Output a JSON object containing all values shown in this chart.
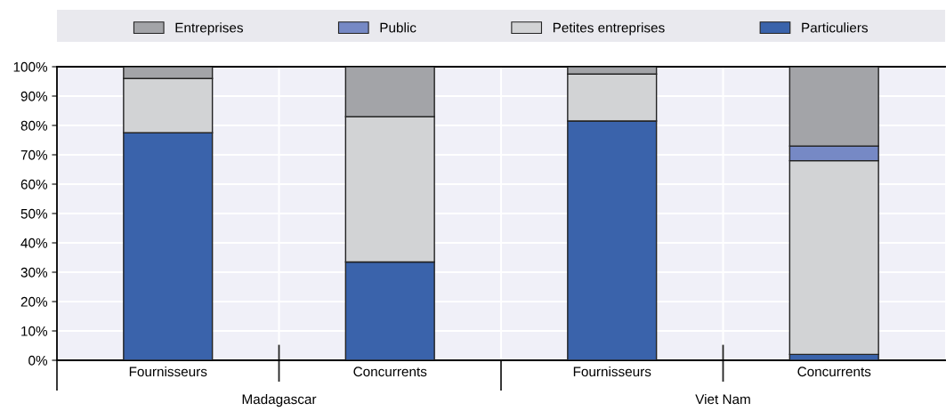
{
  "chart_data": {
    "type": "bar",
    "stacked": true,
    "categories": [
      "Fournisseurs",
      "Concurrents",
      "Fournisseurs",
      "Concurrents"
    ],
    "series": [
      {
        "name": "Particuliers",
        "color": "#3a63ab",
        "values": [
          77.5,
          33.5,
          81.5,
          2
        ]
      },
      {
        "name": "Petites entreprises",
        "color": "#d2d3d5",
        "values": [
          18.5,
          49.5,
          16,
          66
        ]
      },
      {
        "name": "Public",
        "color": "#7689c5",
        "values": [
          0,
          0,
          0,
          5
        ]
      },
      {
        "name": "Entreprises",
        "color": "#a3a4a8",
        "values": [
          4,
          17,
          2.5,
          27
        ]
      }
    ],
    "ylim": [
      0,
      100
    ],
    "yticks": [
      {
        "value": 0,
        "label": "0%"
      },
      {
        "value": 10,
        "label": "10%"
      },
      {
        "value": 20,
        "label": "20%"
      },
      {
        "value": 30,
        "label": "30%"
      },
      {
        "value": 40,
        "label": "40%"
      },
      {
        "value": 50,
        "label": "50%"
      },
      {
        "value": 60,
        "label": "60%"
      },
      {
        "value": 70,
        "label": "70%"
      },
      {
        "value": 80,
        "label": "80%"
      },
      {
        "value": 90,
        "label": "90%"
      },
      {
        "value": 100,
        "label": "100%"
      }
    ],
    "annotations": [
      "Madagascar",
      "Viet Nam"
    ],
    "grid": true,
    "legend": "top"
  }
}
